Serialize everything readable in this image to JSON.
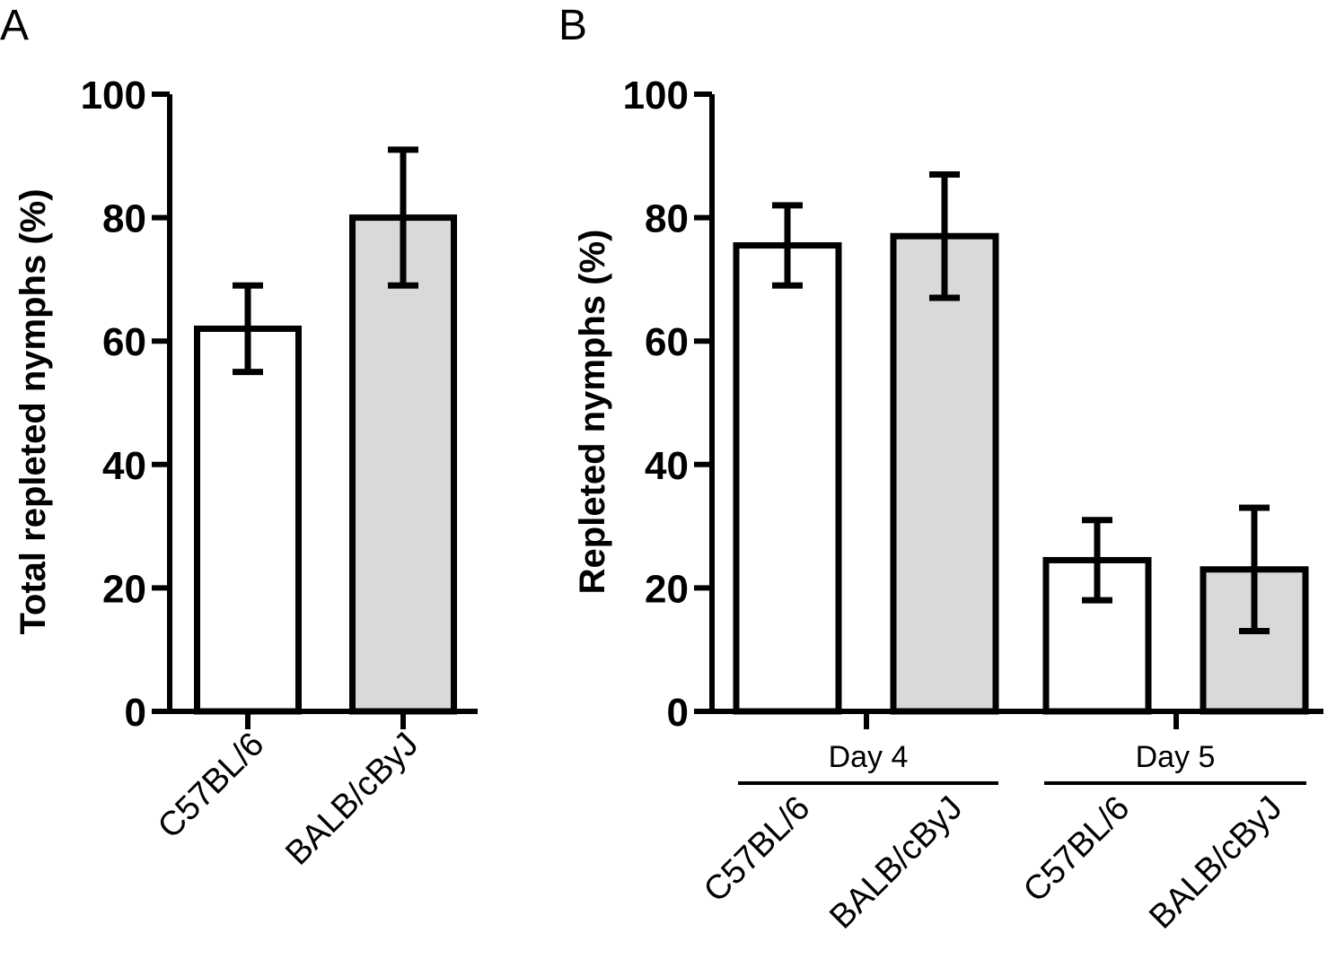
{
  "chart_data": [
    {
      "panel": "A",
      "type": "bar",
      "ylabel": "Total repleted nymphs (%)",
      "ylim": [
        0,
        100
      ],
      "yticks": [
        0,
        20,
        40,
        60,
        80,
        100
      ],
      "categories": [
        "C57BL/6",
        "BALB/cByJ"
      ],
      "values": [
        62,
        80
      ],
      "error_low": [
        55,
        69
      ],
      "error_high": [
        69,
        91
      ],
      "fills": [
        "#ffffff",
        "#d9d9d9"
      ]
    },
    {
      "panel": "B",
      "type": "bar",
      "ylabel": "Repleted nymphs (%)",
      "ylim": [
        0,
        100
      ],
      "yticks": [
        0,
        20,
        40,
        60,
        80,
        100
      ],
      "groups": [
        "Day 4",
        "Day 5"
      ],
      "categories": [
        "C57BL/6",
        "BALB/cByJ",
        "C57BL/6",
        "BALB/cByJ"
      ],
      "values": [
        75.5,
        77,
        24.5,
        23
      ],
      "error_low": [
        69,
        67,
        18,
        13
      ],
      "error_high": [
        82,
        87,
        31,
        33
      ],
      "fills": [
        "#ffffff",
        "#d9d9d9",
        "#ffffff",
        "#d9d9d9"
      ]
    }
  ]
}
